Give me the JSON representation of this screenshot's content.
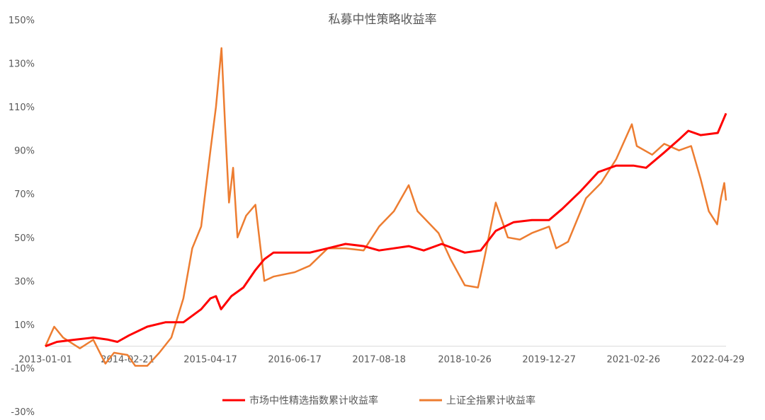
{
  "chart_data": {
    "type": "line",
    "title": "私募中性策略收益率",
    "xlabel": "",
    "ylabel": "",
    "ylim": [
      -30,
      150
    ],
    "y_ticks": [
      -30,
      -10,
      10,
      30,
      50,
      70,
      90,
      110,
      130,
      150
    ],
    "y_tick_labels": [
      "-30%",
      "-10%",
      "10%",
      "30%",
      "50%",
      "70%",
      "90%",
      "110%",
      "130%",
      "150%"
    ],
    "x_range": [
      "2013-01-01",
      "2022-06-10"
    ],
    "x_tick_labels": [
      "2013-01-01",
      "2014-02-21",
      "2015-04-17",
      "2016-06-17",
      "2017-08-18",
      "2018-10-26",
      "2019-12-27",
      "2021-02-26",
      "2022-04-29"
    ],
    "grid": false,
    "legend_position": "bottom",
    "series": [
      {
        "name": "市场中性精选指数累计收益率",
        "color": "#ff0000",
        "points": [
          [
            "2013-01-01",
            0
          ],
          [
            "2013-03-01",
            2
          ],
          [
            "2013-06-01",
            3
          ],
          [
            "2013-09-01",
            4
          ],
          [
            "2013-11-15",
            3
          ],
          [
            "2014-01-01",
            2
          ],
          [
            "2014-03-01",
            5
          ],
          [
            "2014-06-01",
            9
          ],
          [
            "2014-09-01",
            11
          ],
          [
            "2014-12-01",
            11
          ],
          [
            "2015-03-01",
            17
          ],
          [
            "2015-04-17",
            22
          ],
          [
            "2015-05-15",
            23
          ],
          [
            "2015-06-10",
            17
          ],
          [
            "2015-08-01",
            23
          ],
          [
            "2015-10-01",
            27
          ],
          [
            "2015-12-01",
            35
          ],
          [
            "2016-01-15",
            40
          ],
          [
            "2016-03-01",
            43
          ],
          [
            "2016-06-17",
            43
          ],
          [
            "2016-09-01",
            43
          ],
          [
            "2016-12-01",
            45
          ],
          [
            "2017-03-01",
            47
          ],
          [
            "2017-06-01",
            46
          ],
          [
            "2017-08-18",
            44
          ],
          [
            "2017-11-01",
            45
          ],
          [
            "2018-01-15",
            46
          ],
          [
            "2018-04-01",
            44
          ],
          [
            "2018-07-01",
            47
          ],
          [
            "2018-10-26",
            43
          ],
          [
            "2019-01-15",
            44
          ],
          [
            "2019-04-01",
            53
          ],
          [
            "2019-07-01",
            57
          ],
          [
            "2019-10-01",
            58
          ],
          [
            "2019-12-27",
            58
          ],
          [
            "2020-03-01",
            63
          ],
          [
            "2020-06-01",
            71
          ],
          [
            "2020-09-01",
            80
          ],
          [
            "2020-12-01",
            83
          ],
          [
            "2021-02-26",
            83
          ],
          [
            "2021-05-01",
            82
          ],
          [
            "2021-08-01",
            89
          ],
          [
            "2021-10-15",
            95
          ],
          [
            "2021-12-01",
            99
          ],
          [
            "2022-02-01",
            97
          ],
          [
            "2022-04-29",
            98
          ],
          [
            "2022-06-10",
            107
          ]
        ]
      },
      {
        "name": "上证全指累计收益率",
        "color": "#ed7d31",
        "points": [
          [
            "2013-01-01",
            0
          ],
          [
            "2013-02-15",
            9
          ],
          [
            "2013-04-01",
            4
          ],
          [
            "2013-06-25",
            -1
          ],
          [
            "2013-09-01",
            3
          ],
          [
            "2013-11-01",
            -8
          ],
          [
            "2013-12-15",
            -3
          ],
          [
            "2014-02-21",
            -4
          ],
          [
            "2014-04-01",
            -9
          ],
          [
            "2014-06-01",
            -9
          ],
          [
            "2014-08-01",
            -3
          ],
          [
            "2014-10-01",
            4
          ],
          [
            "2014-12-01",
            22
          ],
          [
            "2015-01-15",
            45
          ],
          [
            "2015-03-01",
            55
          ],
          [
            "2015-04-17",
            90
          ],
          [
            "2015-05-15",
            110
          ],
          [
            "2015-06-12",
            137
          ],
          [
            "2015-07-01",
            100
          ],
          [
            "2015-07-20",
            66
          ],
          [
            "2015-08-10",
            82
          ],
          [
            "2015-09-01",
            50
          ],
          [
            "2015-10-15",
            60
          ],
          [
            "2015-12-01",
            65
          ],
          [
            "2016-01-15",
            30
          ],
          [
            "2016-03-01",
            32
          ],
          [
            "2016-06-17",
            34
          ],
          [
            "2016-09-01",
            37
          ],
          [
            "2016-12-01",
            45
          ],
          [
            "2017-03-01",
            45
          ],
          [
            "2017-06-01",
            44
          ],
          [
            "2017-08-18",
            55
          ],
          [
            "2017-11-01",
            62
          ],
          [
            "2018-01-15",
            74
          ],
          [
            "2018-03-01",
            62
          ],
          [
            "2018-06-15",
            52
          ],
          [
            "2018-08-15",
            40
          ],
          [
            "2018-10-26",
            28
          ],
          [
            "2019-01-01",
            27
          ],
          [
            "2019-02-01",
            40
          ],
          [
            "2019-04-01",
            66
          ],
          [
            "2019-06-01",
            50
          ],
          [
            "2019-08-01",
            49
          ],
          [
            "2019-10-01",
            52
          ],
          [
            "2019-12-27",
            55
          ],
          [
            "2020-02-01",
            45
          ],
          [
            "2020-04-01",
            48
          ],
          [
            "2020-07-01",
            68
          ],
          [
            "2020-09-15",
            75
          ],
          [
            "2020-12-01",
            86
          ],
          [
            "2021-02-18",
            102
          ],
          [
            "2021-03-15",
            92
          ],
          [
            "2021-06-01",
            88
          ],
          [
            "2021-08-01",
            93
          ],
          [
            "2021-10-15",
            90
          ],
          [
            "2021-12-15",
            92
          ],
          [
            "2022-02-01",
            77
          ],
          [
            "2022-03-15",
            62
          ],
          [
            "2022-04-26",
            56
          ],
          [
            "2022-05-15",
            68
          ],
          [
            "2022-06-01",
            75
          ],
          [
            "2022-06-10",
            67
          ]
        ]
      }
    ]
  }
}
